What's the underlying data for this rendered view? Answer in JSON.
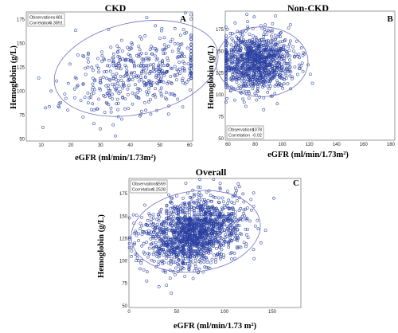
{
  "chart_data": [
    {
      "type": "scatter",
      "id": "ckd",
      "title": "CKD",
      "panel_label": "A",
      "xlabel": "eGFR (ml/min/1.73m²)",
      "ylabel": "Hemoglobin (g/L)",
      "xlim": [
        5,
        61
      ],
      "ylim": [
        48,
        183
      ],
      "xticks": [
        "10",
        "20",
        "30",
        "40",
        "50",
        "60"
      ],
      "yticks": [
        "50",
        "75",
        "100",
        "125",
        "150",
        "175"
      ],
      "stats": [
        {
          "label": "Observations",
          "value": "481"
        },
        {
          "label": "Correlation",
          "value": "0.3891"
        }
      ],
      "stats_position": "top-left",
      "series": [
        {
          "n": 481,
          "x_mean": 43,
          "x_sd": 12,
          "y_mean": 120,
          "y_sd": 22,
          "r": 0.3891
        }
      ],
      "ellipse": {
        "cx": 42,
        "cy": 124,
        "rx": 28,
        "ry": 48,
        "rot_deg": -12
      }
    },
    {
      "type": "scatter",
      "id": "nonckd",
      "title": "Non-CKD",
      "panel_label": "B",
      "xlabel": "eGFR (ml/min/1.73m²)",
      "ylabel": "Hemoglobin (g/L)",
      "xlim": [
        58,
        183
      ],
      "ylim": [
        48,
        196
      ],
      "xticks": [
        "60",
        "80",
        "100",
        "120",
        "140",
        "160",
        "180"
      ],
      "yticks": [
        "50",
        "75",
        "100",
        "125",
        "150",
        "175"
      ],
      "stats": [
        {
          "label": "Observations",
          "value": "1078"
        },
        {
          "label": "Correlation",
          "value": "-0.02"
        }
      ],
      "stats_position": "bottom-left",
      "series": [
        {
          "n": 1078,
          "x_mean": 80,
          "x_sd": 14,
          "y_mean": 137,
          "y_sd": 17,
          "r": -0.02
        }
      ],
      "ellipse": {
        "cx": 85,
        "cy": 138,
        "rx": 34,
        "ry": 40,
        "rot_deg": 0
      }
    },
    {
      "type": "scatter",
      "id": "overall",
      "title": "Overall",
      "panel_label": "C",
      "xlabel": "eGFR (ml/min/1.73 m²)",
      "ylabel": "Hemoglobin (g/L)",
      "xlim": [
        0,
        180
      ],
      "ylim": [
        48,
        192
      ],
      "xticks": [
        "0",
        "50",
        "100",
        "150"
      ],
      "yticks": [
        "50",
        "75",
        "100",
        "125",
        "150",
        "175"
      ],
      "stats": [
        {
          "label": "Observations",
          "value": "1559"
        },
        {
          "label": "Correlation",
          "value": "0.2528"
        }
      ],
      "stats_position": "top-left",
      "series": [
        {
          "n": 1559,
          "x_mean": 67,
          "x_sd": 25,
          "y_mean": 132,
          "y_sd": 19,
          "r": 0.2528
        }
      ],
      "ellipse": {
        "cx": 70,
        "cy": 133,
        "rx": 68,
        "ry": 45,
        "rot_deg": -8
      }
    }
  ]
}
